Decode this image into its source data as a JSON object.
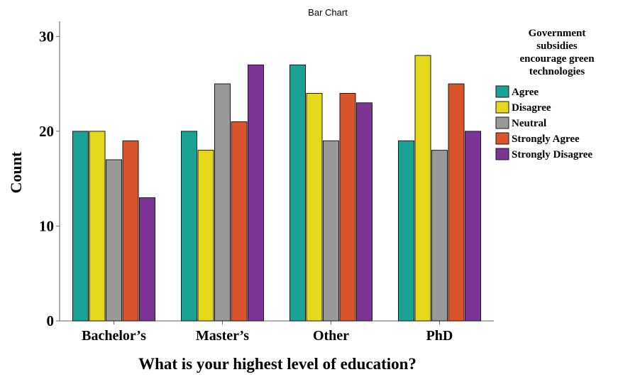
{
  "chart_data": {
    "type": "bar",
    "title": "Bar Chart",
    "xlabel": "What is your highest level of education?",
    "ylabel": "Count",
    "categories": [
      "Bachelor’s",
      "Master’s",
      "Other",
      "PhD"
    ],
    "ylim": [
      0,
      31
    ],
    "yticks": [
      "0",
      "10",
      "20",
      "30"
    ],
    "grid": false,
    "legend": {
      "title_lines": [
        "Government",
        "subsidies",
        "encourage green",
        "technologies"
      ],
      "placement": "right"
    },
    "series": [
      {
        "name": "Agree",
        "color": "#1aa394",
        "values": [
          20,
          20,
          27,
          19
        ]
      },
      {
        "name": "Disagree",
        "color": "#e6d81a",
        "values": [
          20,
          18,
          24,
          28
        ]
      },
      {
        "name": "Neutral",
        "color": "#999999",
        "values": [
          17,
          25,
          19,
          18
        ]
      },
      {
        "name": "Strongly Agree",
        "color": "#d9532b",
        "values": [
          19,
          21,
          24,
          25
        ]
      },
      {
        "name": "Strongly Disagree",
        "color": "#7c3595",
        "values": [
          13,
          27,
          23,
          20
        ]
      }
    ]
  }
}
